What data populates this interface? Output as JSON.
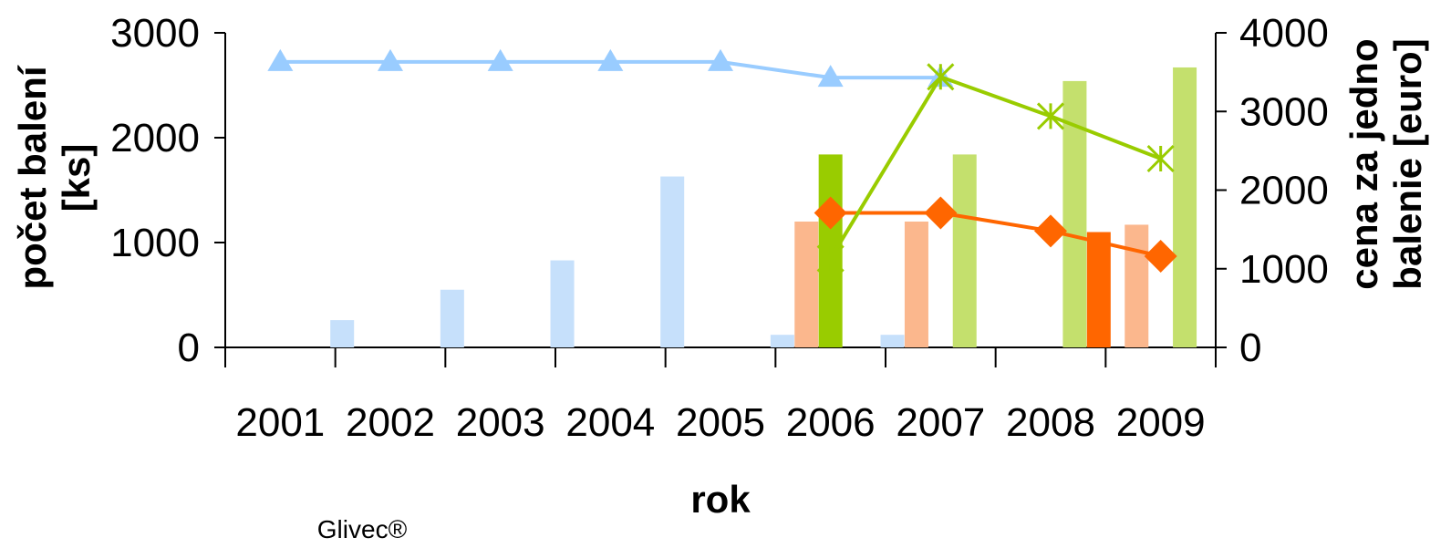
{
  "chart_data": {
    "type": "bar+line",
    "categories": [
      "2001",
      "2002",
      "2003",
      "2004",
      "2005",
      "2006",
      "2007",
      "2008",
      "2009"
    ],
    "xlabel": "rok",
    "ylabel_left": [
      "počet balení",
      "[ks]"
    ],
    "ylabel_right": [
      "cena za jedno",
      "balenie [euro]"
    ],
    "ylim_left": [
      0,
      3000
    ],
    "ylim_right": [
      0,
      4000
    ],
    "yticks_left": [
      0,
      1000,
      2000,
      3000
    ],
    "yticks_right": [
      0,
      1000,
      2000,
      3000,
      4000
    ],
    "legend_label": "Glivec®",
    "grid": false,
    "bar_series": [
      {
        "color": "#c6e0fb",
        "values": [
          0,
          260,
          550,
          830,
          1630,
          120,
          120,
          0,
          0
        ]
      },
      {
        "color": "#fbb78d",
        "values": [
          0,
          0,
          0,
          0,
          0,
          1200,
          1200,
          0,
          1170
        ]
      },
      {
        "color": "#99cc00",
        "values": [
          0,
          0,
          0,
          0,
          0,
          1840,
          0,
          0,
          0
        ]
      },
      {
        "color": "#c4e06d",
        "values": [
          0,
          0,
          0,
          0,
          0,
          0,
          1840,
          2540,
          2670
        ]
      },
      {
        "color": "#ff6600",
        "values": [
          0,
          0,
          0,
          0,
          0,
          0,
          0,
          1100,
          0
        ]
      }
    ],
    "line_series": [
      {
        "color": "#99ccff",
        "marker": "triangle",
        "axis": "right",
        "values": [
          3630,
          3630,
          3630,
          3630,
          3630,
          3430,
          3430,
          null,
          null
        ]
      },
      {
        "color": "#ff6600",
        "marker": "diamond",
        "axis": "right",
        "values": [
          null,
          null,
          null,
          null,
          null,
          1710,
          1710,
          1480,
          1160
        ]
      },
      {
        "color": "#99cc00",
        "marker": "asterisk",
        "axis": "right",
        "values": [
          null,
          null,
          null,
          null,
          null,
          1130,
          3440,
          2940,
          2400
        ]
      }
    ]
  }
}
